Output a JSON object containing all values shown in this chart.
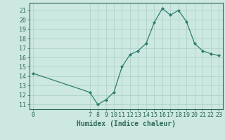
{
  "x_values": [
    0,
    7,
    8,
    9,
    10,
    11,
    12,
    13,
    14,
    15,
    16,
    17,
    18,
    19,
    20,
    21,
    22,
    23
  ],
  "y_values": [
    14.3,
    12.3,
    11.0,
    11.5,
    12.3,
    15.0,
    16.3,
    16.7,
    17.5,
    19.7,
    21.2,
    20.5,
    21.0,
    19.8,
    17.5,
    16.7,
    16.4,
    16.2
  ],
  "line_color": "#2e7d6e",
  "marker": "D",
  "marker_size": 2,
  "bg_color": "#cce8e0",
  "grid_color": "#aacfc8",
  "xlabel": "Humidex (Indice chaleur)",
  "ylabel_ticks": [
    11,
    12,
    13,
    14,
    15,
    16,
    17,
    18,
    19,
    20,
    21
  ],
  "xlim": [
    -0.5,
    23.5
  ],
  "ylim": [
    10.5,
    21.8
  ],
  "xticks": [
    0,
    7,
    8,
    9,
    10,
    11,
    12,
    13,
    14,
    15,
    16,
    17,
    18,
    19,
    20,
    21,
    22,
    23
  ],
  "tick_color": "#2e6858",
  "font_color": "#2e6858",
  "font_size": 6,
  "xlabel_fontsize": 7
}
